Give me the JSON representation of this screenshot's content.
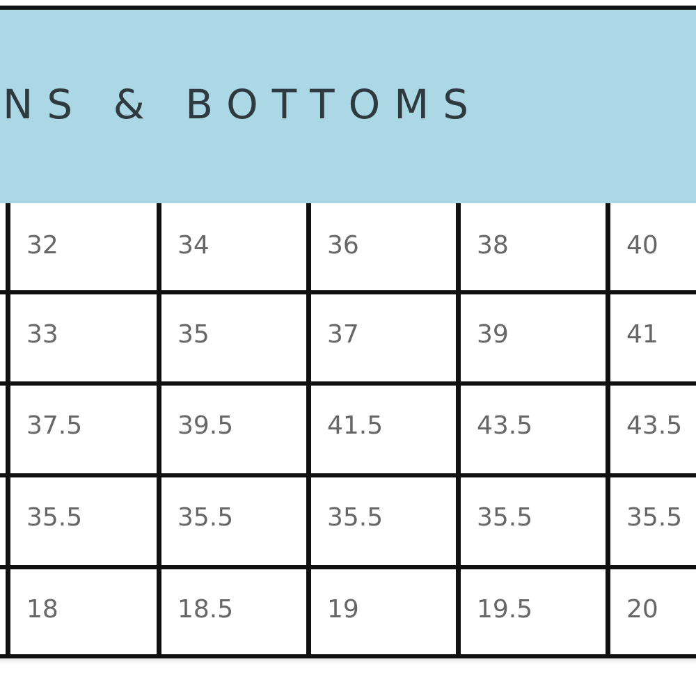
{
  "header": {
    "title": "NS & BOTTOMS",
    "background_color": "#acd7e5"
  },
  "table": {
    "rows": [
      [
        "32",
        "34",
        "36",
        "38",
        "40"
      ],
      [
        "33",
        "35",
        "37",
        "39",
        "41"
      ],
      [
        "37.5",
        "39.5",
        "41.5",
        "43.5",
        "43.5"
      ],
      [
        "35.5",
        "35.5",
        "35.5",
        "35.5",
        "35.5"
      ],
      [
        "18",
        "18.5",
        "19",
        "19.5",
        "20"
      ]
    ]
  }
}
